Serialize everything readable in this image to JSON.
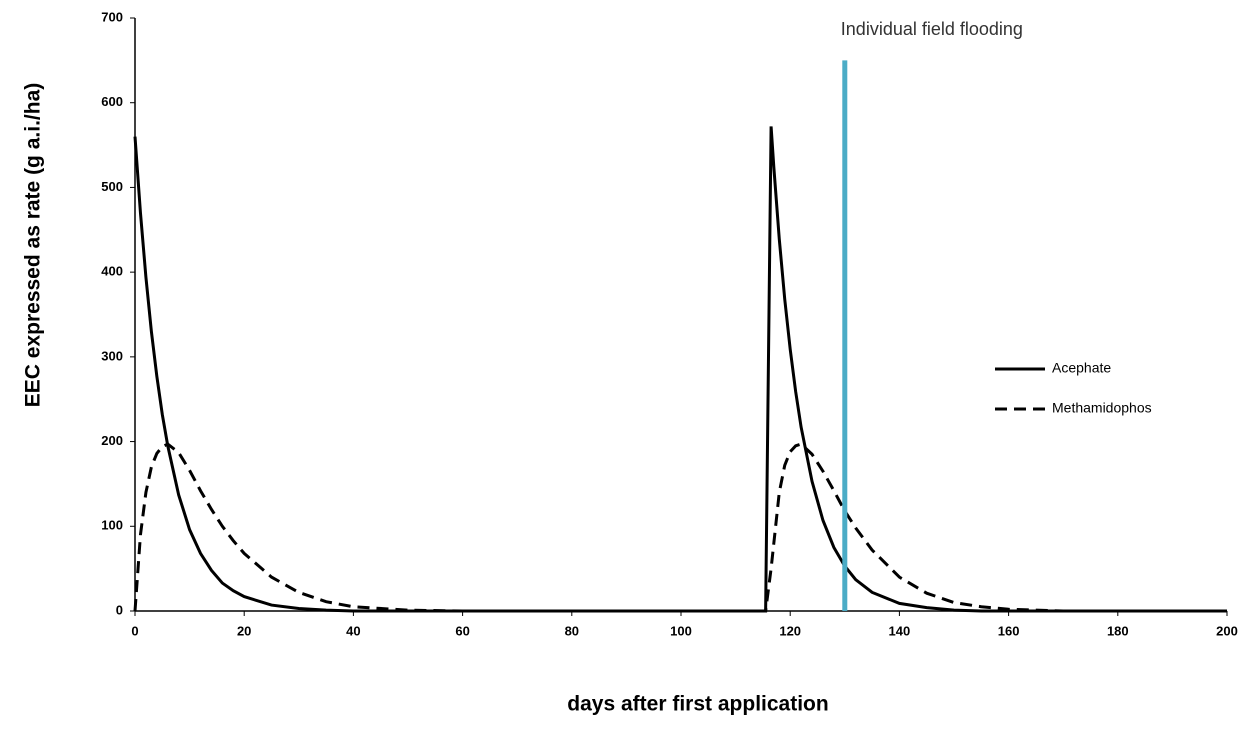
{
  "chart_data": {
    "type": "line",
    "y_label": "EEC expressed as rate (g a.i./ha)",
    "x_label": "days after first application",
    "x": [
      0,
      1,
      2,
      3,
      4,
      5,
      6,
      8,
      10,
      12,
      14,
      16,
      18,
      20,
      25,
      30,
      35,
      40,
      50,
      60,
      80,
      100,
      115,
      115.5,
      116.5,
      117,
      118,
      119,
      120,
      121,
      122,
      124,
      126,
      128,
      130,
      132,
      135,
      140,
      145,
      150,
      155,
      160,
      170,
      200
    ],
    "series": [
      {
        "name": "Acephate",
        "color": "#000000",
        "dash": false,
        "values": [
          560,
          470,
          394,
          330,
          277,
          232,
          195,
          137,
          96,
          68,
          48,
          33,
          24,
          17,
          7,
          3,
          1,
          0,
          0,
          0,
          0,
          0,
          0,
          0,
          572,
          524,
          439,
          368,
          309,
          259,
          217,
          153,
          107,
          75,
          53,
          37,
          22,
          9,
          4,
          1,
          0,
          0,
          0,
          0
        ]
      },
      {
        "name": "Methamidophos",
        "color": "#000000",
        "dash": true,
        "values": [
          0,
          90,
          140,
          170,
          186,
          194,
          197,
          187,
          166,
          142,
          120,
          100,
          83,
          68,
          40,
          22,
          11,
          5,
          1,
          0,
          0,
          0,
          0,
          0,
          50,
          80,
          140,
          172,
          188,
          195,
          197,
          185,
          165,
          142,
          118,
          98,
          72,
          40,
          21,
          10,
          5,
          2,
          0,
          0
        ]
      }
    ],
    "flood_line": {
      "x": 130,
      "ymax": 650,
      "color": "#4bacc6",
      "label": "Individual field flooding"
    },
    "xlim": [
      0,
      200
    ],
    "xticks": [
      0,
      20,
      40,
      60,
      80,
      100,
      120,
      140,
      160,
      180,
      200
    ],
    "ylim": [
      0,
      700
    ],
    "yticks": [
      0,
      100,
      200,
      300,
      400,
      500,
      600,
      700
    ],
    "grid": false
  }
}
